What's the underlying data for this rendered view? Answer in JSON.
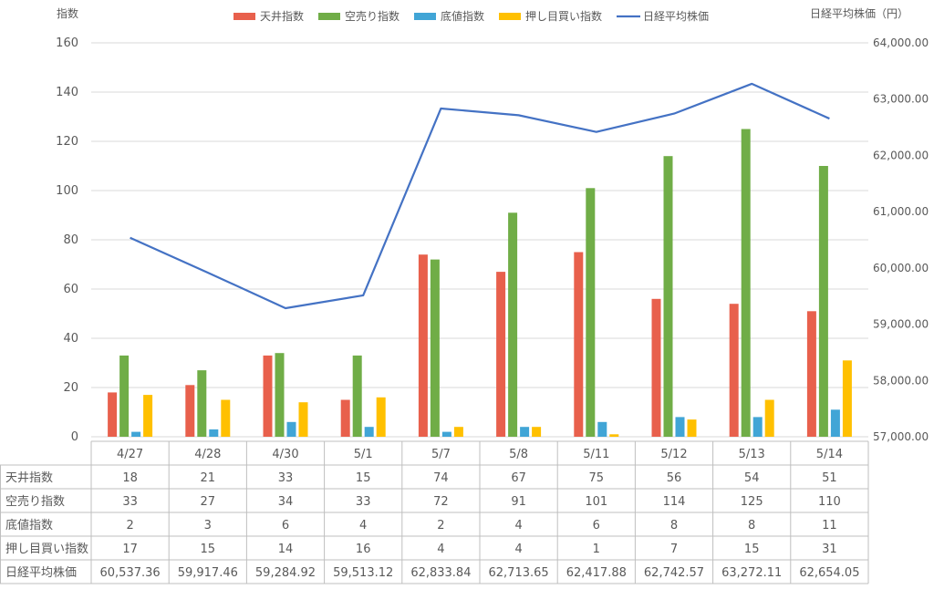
{
  "chart_data": {
    "type": "bar",
    "left_axis_title": "指数",
    "right_axis_title": "日経平均株価（円）",
    "categories": [
      "4/27",
      "4/28",
      "4/30",
      "5/1",
      "5/7",
      "5/8",
      "5/11",
      "5/12",
      "5/13",
      "5/14"
    ],
    "ylim": [
      0,
      160
    ],
    "yticks": [
      0,
      20,
      40,
      60,
      80,
      100,
      120,
      140,
      160
    ],
    "y2lim": [
      57000,
      64000
    ],
    "y2ticks": [
      "57,000.00",
      "58,000.00",
      "59,000.00",
      "60,000.00",
      "61,000.00",
      "62,000.00",
      "63,000.00",
      "64,000.00"
    ],
    "y2tick_values": [
      57000,
      58000,
      59000,
      60000,
      61000,
      62000,
      63000,
      64000
    ],
    "grid": true,
    "legend_position": "top",
    "series": [
      {
        "name": "天井指数",
        "kind": "bar",
        "axis": "left",
        "color": "#E8604C",
        "values": [
          18,
          21,
          33,
          15,
          74,
          67,
          75,
          56,
          54,
          51
        ]
      },
      {
        "name": "空売り指数",
        "kind": "bar",
        "axis": "left",
        "color": "#70AD47",
        "values": [
          33,
          27,
          34,
          33,
          72,
          91,
          101,
          114,
          125,
          110
        ]
      },
      {
        "name": "底値指数",
        "kind": "bar",
        "axis": "left",
        "color": "#41A5D6",
        "values": [
          2,
          3,
          6,
          4,
          2,
          4,
          6,
          8,
          8,
          11
        ]
      },
      {
        "name": "押し目買い指数",
        "kind": "bar",
        "axis": "left",
        "color": "#FFC000",
        "values": [
          17,
          15,
          14,
          16,
          4,
          4,
          1,
          7,
          15,
          31
        ]
      },
      {
        "name": "日経平均株価",
        "kind": "line",
        "axis": "right",
        "color": "#4472C4",
        "values": [
          60537.36,
          59917.46,
          59284.92,
          59513.12,
          62833.84,
          62713.65,
          62417.88,
          62742.57,
          63272.11,
          62654.05
        ]
      }
    ],
    "table": {
      "rows": [
        {
          "label": "天井指数",
          "cells": [
            "18",
            "21",
            "33",
            "15",
            "74",
            "67",
            "75",
            "56",
            "54",
            "51"
          ]
        },
        {
          "label": "空売り指数",
          "cells": [
            "33",
            "27",
            "34",
            "33",
            "72",
            "91",
            "101",
            "114",
            "125",
            "110"
          ]
        },
        {
          "label": "底値指数",
          "cells": [
            "2",
            "3",
            "6",
            "4",
            "2",
            "4",
            "6",
            "8",
            "8",
            "11"
          ]
        },
        {
          "label": "押し目買い指数",
          "cells": [
            "17",
            "15",
            "14",
            "16",
            "4",
            "4",
            "1",
            "7",
            "15",
            "31"
          ]
        },
        {
          "label": "日経平均株価",
          "cells": [
            "60,537.36",
            "59,917.46",
            "59,284.92",
            "59,513.12",
            "62,833.84",
            "62,713.65",
            "62,417.88",
            "62,742.57",
            "63,272.11",
            "62,654.05"
          ]
        }
      ]
    }
  }
}
